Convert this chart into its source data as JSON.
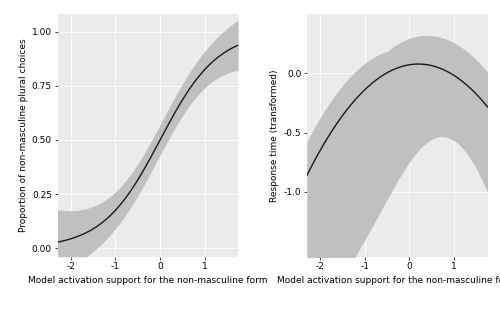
{
  "left_panel": {
    "xlabel": "Model activation support for the non-masculine form",
    "ylabel": "Proportion of non-masculine plural choices",
    "yticks": [
      0.0,
      0.25,
      0.5,
      0.75,
      1.0
    ],
    "ytick_labels": [
      "0.00",
      "0.25",
      "0.50",
      "0.75",
      "1.00"
    ],
    "xticks": [
      -2,
      -1,
      0,
      1
    ],
    "xtick_labels": [
      "-2",
      "-1",
      "0",
      "1"
    ],
    "xlim": [
      -2.3,
      1.75
    ],
    "ylim": [
      -0.04,
      1.08
    ]
  },
  "right_panel": {
    "xlabel": "Model activation support for the non-masculine form",
    "ylabel": "Response time (transformed)",
    "yticks": [
      0.0,
      -0.5,
      -1.0
    ],
    "ytick_labels": [
      "0.0",
      "-0.5",
      "-1.0"
    ],
    "xticks": [
      -2,
      -1,
      0,
      1
    ],
    "xtick_labels": [
      "-2",
      "-1",
      "0",
      "1"
    ],
    "xlim": [
      -2.3,
      1.75
    ],
    "ylim": [
      -1.55,
      0.5
    ]
  },
  "panel_bg_color": "#EBEBEB",
  "fig_bg_color": "#FFFFFF",
  "line_color": "#1a1a1a",
  "ci_color": "#C0C0C0",
  "grid_color": "#FFFFFF",
  "tick_label_size": 6.5,
  "axis_label_size": 6.5
}
